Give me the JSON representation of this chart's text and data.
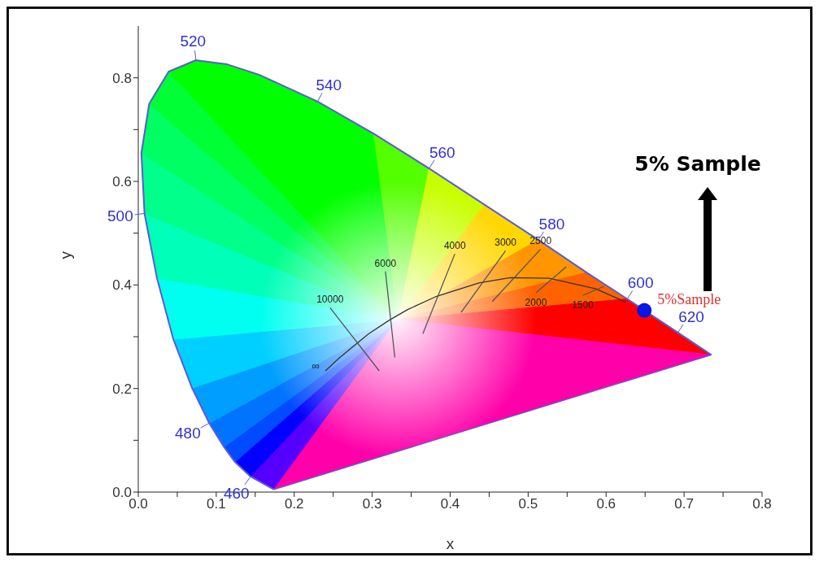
{
  "chart_data": {
    "type": "line",
    "xlabel": "x",
    "ylabel": "y",
    "xlim": [
      0,
      0.8
    ],
    "ylim": [
      0,
      0.9
    ],
    "xticks": [
      {
        "value": 0,
        "label": "0.0"
      },
      {
        "value": 0.05,
        "label": null
      },
      {
        "value": 0.1,
        "label": "0.1"
      },
      {
        "value": 0.15,
        "label": null
      },
      {
        "value": 0.2,
        "label": "0.2"
      },
      {
        "value": 0.25,
        "label": null
      },
      {
        "value": 0.3,
        "label": "0.3"
      },
      {
        "value": 0.35,
        "label": null
      },
      {
        "value": 0.4,
        "label": "0.4"
      },
      {
        "value": 0.45,
        "label": null
      },
      {
        "value": 0.5,
        "label": "0.5"
      },
      {
        "value": 0.55,
        "label": null
      },
      {
        "value": 0.6,
        "label": "0.6"
      },
      {
        "value": 0.65,
        "label": null
      },
      {
        "value": 0.7,
        "label": "0.7"
      },
      {
        "value": 0.75,
        "label": null
      },
      {
        "value": 0.8,
        "label": "0.8"
      }
    ],
    "yticks": [
      {
        "value": 0,
        "label": "0.0"
      },
      {
        "value": 0.1,
        "label": null
      },
      {
        "value": 0.2,
        "label": "0.2"
      },
      {
        "value": 0.3,
        "label": null
      },
      {
        "value": 0.4,
        "label": "0.4"
      },
      {
        "value": 0.5,
        "label": null
      },
      {
        "value": 0.6,
        "label": "0.6"
      },
      {
        "value": 0.7,
        "label": null
      },
      {
        "value": 0.8,
        "label": "0.8"
      }
    ],
    "marker": "none",
    "line_style": "solid",
    "series": [
      {
        "color": "#5b5bd6",
        "x": [
          0.174,
          0.144,
          0.124,
          0.11,
          0.091,
          0.069,
          0.045,
          0.024,
          0.008,
          0.004,
          0.014,
          0.039,
          0.074,
          0.114,
          0.155,
          0.23,
          0.302,
          0.373,
          0.444,
          0.513,
          0.575,
          0.627,
          0.692,
          0.719,
          0.735
        ],
        "values": [
          0.005,
          0.03,
          0.058,
          0.087,
          0.133,
          0.201,
          0.295,
          0.413,
          0.538,
          0.655,
          0.75,
          0.812,
          0.834,
          0.826,
          0.806,
          0.754,
          0.692,
          0.625,
          0.555,
          0.487,
          0.424,
          0.373,
          0.308,
          0.281,
          0.265
        ]
      },
      {
        "color": "#5b5bd6",
        "x": [
          0.735,
          0.174
        ],
        "values": [
          0.265,
          0.005
        ]
      },
      {
        "color": "#333333",
        "x": [
          0.24,
          0.257,
          0.281,
          0.295,
          0.322,
          0.345,
          0.381,
          0.437,
          0.477,
          0.527,
          0.586,
          0.625
        ],
        "values": [
          0.234,
          0.258,
          0.288,
          0.305,
          0.332,
          0.352,
          0.377,
          0.404,
          0.414,
          0.413,
          0.393,
          0.367
        ]
      },
      {
        "name": "10000",
        "color": "#555555",
        "x": [
          0.246,
          0.309
        ],
        "values": [
          0.356,
          0.234
        ]
      },
      {
        "name": "6000",
        "color": "#555555",
        "x": [
          0.317,
          0.329
        ],
        "values": [
          0.426,
          0.26
        ]
      },
      {
        "name": "4000",
        "color": "#555555",
        "x": [
          0.406,
          0.365
        ],
        "values": [
          0.46,
          0.306
        ]
      },
      {
        "name": "3000",
        "color": "#555555",
        "x": [
          0.471,
          0.414
        ],
        "values": [
          0.466,
          0.347
        ]
      },
      {
        "name": "2500",
        "color": "#555555",
        "x": [
          0.516,
          0.454
        ],
        "values": [
          0.469,
          0.368
        ]
      },
      {
        "name": "2000",
        "color": "#555555",
        "x": [
          0.51,
          0.549
        ],
        "values": [
          0.385,
          0.435
        ]
      },
      {
        "name": "1500",
        "color": "#555555",
        "x": [
          0.57,
          0.597
        ],
        "values": [
          0.38,
          0.397
        ]
      },
      {
        "name": "5%Sample",
        "type": "scatter",
        "marker": "circle",
        "color": "#0a14e6",
        "x": [
          0.649
        ],
        "values": [
          0.351
        ]
      }
    ],
    "annotations": [
      "5% Sample",
      {
        "text": "460",
        "x": 0.144,
        "y": 0.03
      },
      {
        "text": "480",
        "x": 0.091,
        "y": 0.133
      },
      {
        "text": "500",
        "x": 0.008,
        "y": 0.538
      },
      {
        "text": "520",
        "x": 0.074,
        "y": 0.834
      },
      {
        "text": "540",
        "x": 0.23,
        "y": 0.754
      },
      {
        "text": "560",
        "x": 0.373,
        "y": 0.625
      },
      {
        "text": "580",
        "x": 0.513,
        "y": 0.487
      },
      {
        "text": "600",
        "x": 0.627,
        "y": 0.373
      },
      {
        "text": "620",
        "x": 0.692,
        "y": 0.308
      },
      {
        "text": "∞",
        "x": 0.24,
        "y": 0.234
      }
    ]
  }
}
